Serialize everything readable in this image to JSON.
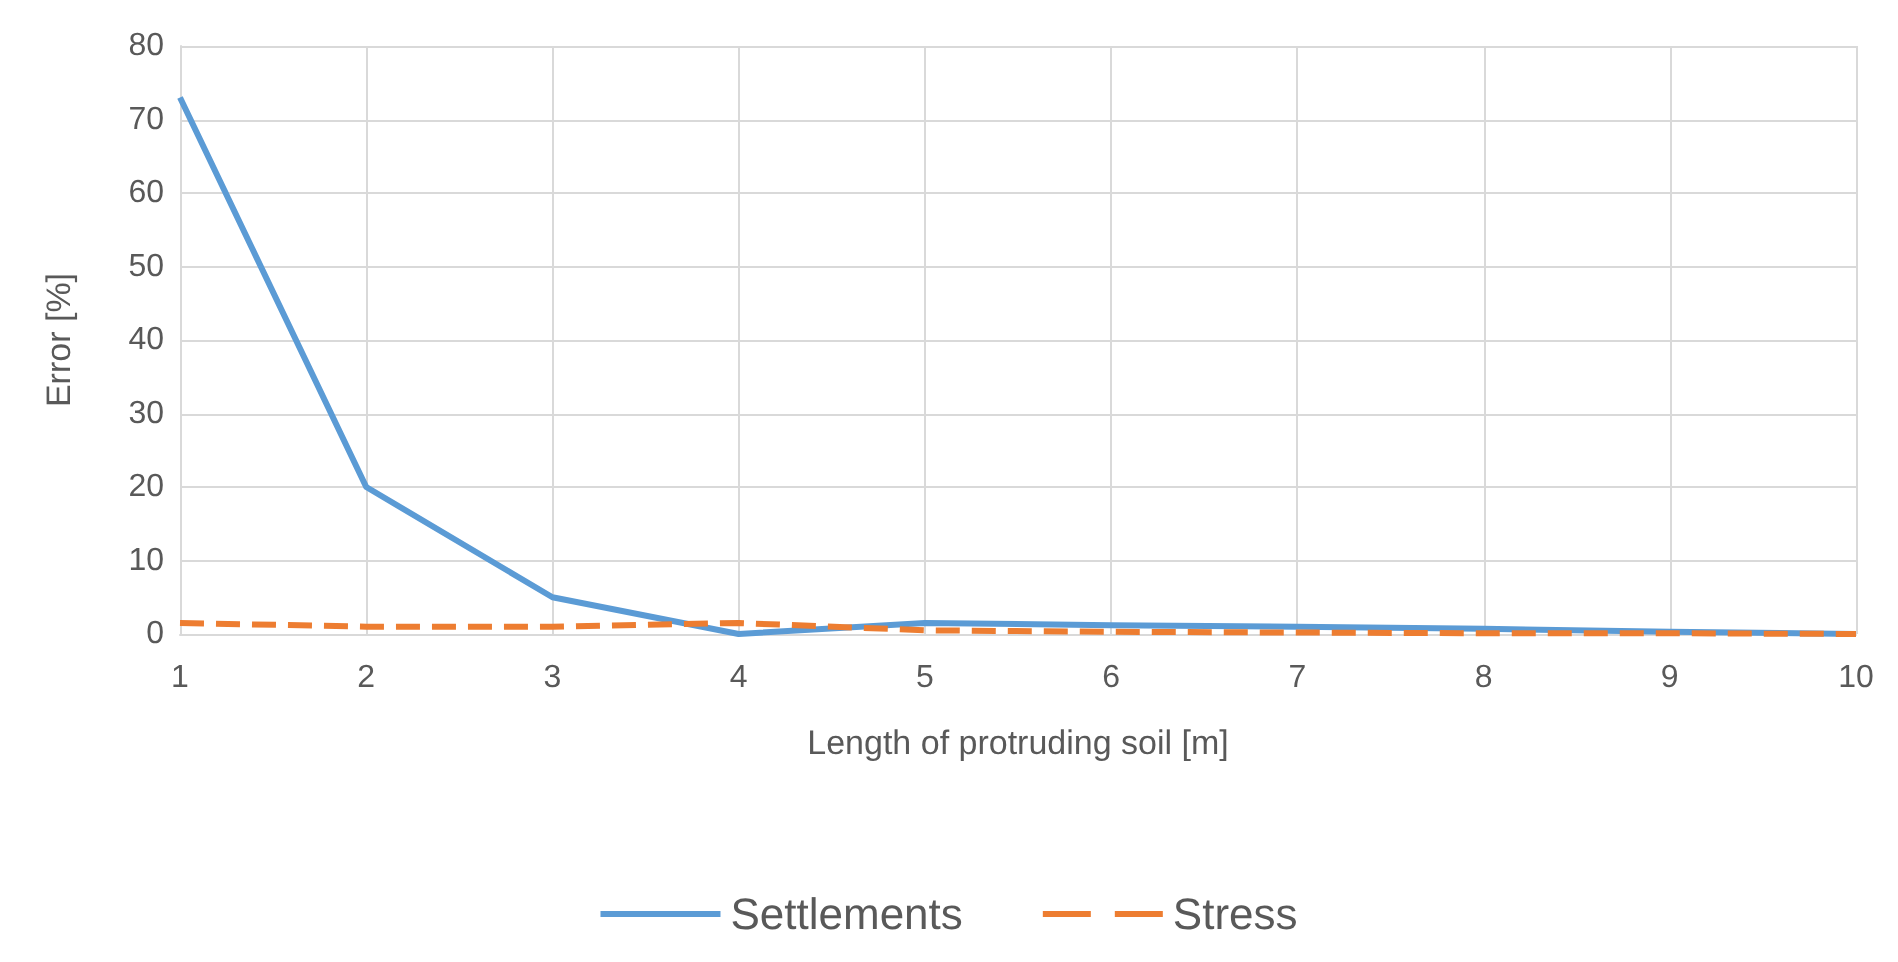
{
  "chart_data": {
    "type": "line",
    "xlabel": "Length of protruding soil [m]",
    "ylabel": "Error [%]",
    "x": [
      1,
      2,
      3,
      4,
      5,
      6,
      7,
      8,
      9,
      10
    ],
    "series": [
      {
        "name": "Settlements",
        "color": "#5b9bd5",
        "line_style": "solid",
        "values": [
          73,
          20,
          5,
          0,
          1.5,
          1.2,
          1,
          0.7,
          0.3,
          0
        ]
      },
      {
        "name": "Stress",
        "color": "#ed7d31",
        "line_style": "dashed",
        "values": [
          1.5,
          1,
          1,
          1.5,
          0.5,
          0.3,
          0.2,
          0.1,
          0.1,
          0
        ]
      }
    ],
    "xlim": [
      1,
      10
    ],
    "xticks": [
      1,
      2,
      3,
      4,
      5,
      6,
      7,
      8,
      9,
      10
    ],
    "ylim": [
      0,
      80
    ],
    "yticks": [
      0,
      10,
      20,
      30,
      40,
      50,
      60,
      70,
      80
    ],
    "grid": true,
    "legend": "bottom",
    "marker": "none"
  }
}
